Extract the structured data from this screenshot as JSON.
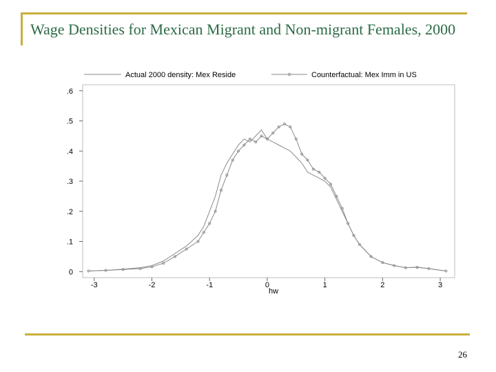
{
  "slide": {
    "title": "Wage Densities for Mexican Migrant and Non-migrant Females, 2000",
    "page_number": "26"
  },
  "colors": {
    "accent": "#c9ae3c",
    "title_text": "#2b6a45",
    "series_actual": "#8a8a8a",
    "series_counterfactual": "#8a8a8a"
  },
  "chart_data": {
    "type": "line",
    "title": "",
    "xlabel": "hw",
    "ylabel": "",
    "xlim": [
      -3.2,
      3.25
    ],
    "ylim": [
      -0.02,
      0.62
    ],
    "xticks": [
      -3,
      -2,
      -1,
      0,
      1,
      2,
      3
    ],
    "yticks": [
      0,
      0.1,
      0.2,
      0.3,
      0.4,
      0.5,
      0.6
    ],
    "xtick_labels": [
      "-3",
      "-2",
      "-1",
      "0",
      "1",
      "2",
      "3"
    ],
    "ytick_labels": [
      "0",
      ".1",
      ".2",
      ".3",
      ".4",
      ".5",
      ".6"
    ],
    "legend_position": "top",
    "series": [
      {
        "name": "Actual 2000 density: Mex Reside",
        "marker": "none",
        "x": [
          -3.1,
          -2.8,
          -2.5,
          -2.2,
          -2.0,
          -1.8,
          -1.6,
          -1.4,
          -1.2,
          -1.1,
          -1.0,
          -0.9,
          -0.8,
          -0.7,
          -0.6,
          -0.5,
          -0.4,
          -0.3,
          -0.2,
          -0.1,
          0.0,
          0.1,
          0.2,
          0.3,
          0.4,
          0.5,
          0.6,
          0.7,
          0.8,
          0.9,
          1.0,
          1.1,
          1.2,
          1.3,
          1.4,
          1.5,
          1.6,
          1.8,
          2.0,
          2.2,
          2.4,
          2.6,
          2.8,
          3.1
        ],
        "y": [
          0.002,
          0.004,
          0.008,
          0.013,
          0.02,
          0.035,
          0.06,
          0.085,
          0.12,
          0.15,
          0.2,
          0.25,
          0.32,
          0.36,
          0.39,
          0.42,
          0.44,
          0.43,
          0.45,
          0.47,
          0.44,
          0.43,
          0.42,
          0.41,
          0.4,
          0.38,
          0.36,
          0.33,
          0.32,
          0.31,
          0.3,
          0.28,
          0.24,
          0.2,
          0.16,
          0.12,
          0.09,
          0.05,
          0.03,
          0.02,
          0.013,
          0.015,
          0.01,
          0.002
        ]
      },
      {
        "name": "Counterfactual: Mex Imm in US",
        "marker": "circle",
        "x": [
          -3.1,
          -2.8,
          -2.5,
          -2.2,
          -2.0,
          -1.8,
          -1.6,
          -1.4,
          -1.2,
          -1.1,
          -1.0,
          -0.9,
          -0.8,
          -0.7,
          -0.6,
          -0.5,
          -0.4,
          -0.3,
          -0.2,
          -0.1,
          0.0,
          0.1,
          0.2,
          0.3,
          0.4,
          0.5,
          0.6,
          0.7,
          0.8,
          0.9,
          1.0,
          1.1,
          1.2,
          1.3,
          1.4,
          1.5,
          1.6,
          1.8,
          2.0,
          2.2,
          2.4,
          2.6,
          2.8,
          3.1
        ],
        "y": [
          0.002,
          0.004,
          0.007,
          0.01,
          0.016,
          0.028,
          0.05,
          0.075,
          0.1,
          0.13,
          0.16,
          0.2,
          0.27,
          0.32,
          0.37,
          0.4,
          0.42,
          0.44,
          0.43,
          0.45,
          0.44,
          0.46,
          0.48,
          0.49,
          0.48,
          0.44,
          0.39,
          0.37,
          0.34,
          0.33,
          0.31,
          0.29,
          0.25,
          0.21,
          0.16,
          0.12,
          0.09,
          0.05,
          0.03,
          0.02,
          0.013,
          0.014,
          0.01,
          0.002
        ]
      }
    ]
  }
}
